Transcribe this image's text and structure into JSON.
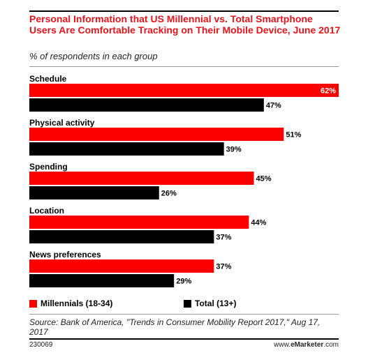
{
  "header": {
    "title": "Personal Information that US Millennial vs. Total Smartphone Users Are Comfortable Tracking on Their Mobile Device, June 2017",
    "subtitle": "% of respondents in each group"
  },
  "colors": {
    "millennials": "#fa0000",
    "total": "#000000"
  },
  "chart_data": {
    "type": "bar",
    "orientation": "horizontal",
    "title": "Personal Information that US Millennial vs. Total Smartphone Users Are Comfortable Tracking on Their Mobile Device, June 2017",
    "subtitle": "% of respondents in each group",
    "categories": [
      "Schedule",
      "Physical activity",
      "Spending",
      "Location",
      "News preferences"
    ],
    "series": [
      {
        "name": "Millennials (18-34)",
        "values": [
          62,
          51,
          45,
          44,
          37
        ]
      },
      {
        "name": "Total (13+)",
        "values": [
          47,
          39,
          26,
          37,
          29
        ]
      }
    ],
    "value_suffix": "%",
    "xlim": [
      0,
      62
    ],
    "grid": false,
    "legend": "bottom"
  },
  "legend": {
    "millennials": "Millennials (18-34)",
    "total": "Total (13+)"
  },
  "footer": {
    "source": "Source: Bank of America, \"Trends in Consumer Mobility Report 2017,\" Aug 17, 2017",
    "chart_id": "230069",
    "brand_prefix": "www.",
    "brand_name": "eMarketer",
    "brand_suffix": ".com"
  }
}
